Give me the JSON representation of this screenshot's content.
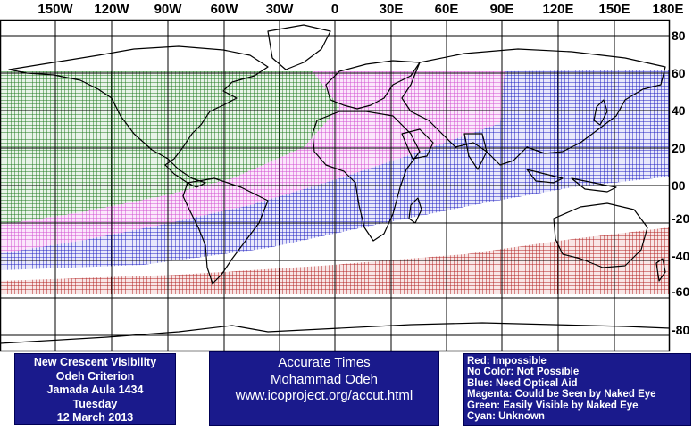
{
  "map": {
    "top_labels": [
      "150W",
      "120W",
      "90W",
      "60W",
      "30W",
      "0",
      "30E",
      "60E",
      "90E",
      "120E",
      "150E",
      "180E"
    ],
    "right_labels": [
      "80",
      "60",
      "40",
      "20",
      "00",
      "-20",
      "-40",
      "-60",
      "-80"
    ],
    "colors": {
      "red": "#b22222",
      "blue": "#2020c0",
      "magenta": "#d050d0",
      "green": "#1f7a1f",
      "coast": "#000000",
      "grid": "#000000"
    }
  },
  "title_box": {
    "line1": "New Crescent Visibility",
    "line2": "Odeh Criterion",
    "line3": "Jamada Aula 1434",
    "line4": "Tuesday",
    "line5": "12 March 2013"
  },
  "credit_box": {
    "line1": "Accurate Times",
    "line2": "Mohammad Odeh",
    "line3": "www.icoproject.org/accut.html"
  },
  "legend": {
    "red": "Red: Impossible",
    "none": "No Color: Not Possible",
    "blue": "Blue: Need Optical Aid",
    "magenta": "Magenta: Could be Seen by Naked Eye",
    "green": "Green: Easily Visible by Naked Eye",
    "cyan": "Cyan: Unknown"
  }
}
